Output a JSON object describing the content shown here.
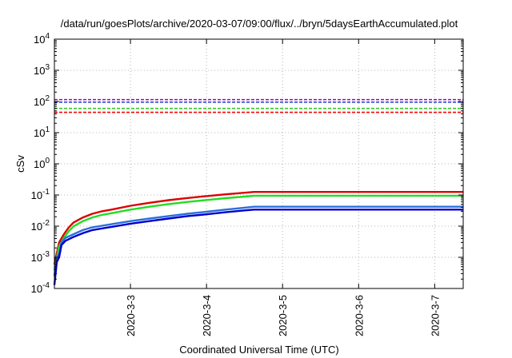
{
  "chart_data": {
    "type": "line",
    "title": "/data/run/goesPlots/archive/2020-03-07/09:00/flux/../bryn/5daysEarthAccumulated.plot",
    "xlabel": "Coordinated Universal Time (UTC)",
    "ylabel": "cSv",
    "xlim": [
      "2020-03-02",
      "2020-03-07 09:00"
    ],
    "ylim": [
      0.0001,
      10000
    ],
    "yscale": "log",
    "grid": true,
    "x_ticks": [
      {
        "date": "2020-03-03",
        "label": "2020-3-3"
      },
      {
        "date": "2020-03-04",
        "label": "2020-3-4"
      },
      {
        "date": "2020-03-05",
        "label": "2020-3-5"
      },
      {
        "date": "2020-03-06",
        "label": "2020-3-6"
      },
      {
        "date": "2020-03-07",
        "label": "2020-3-7"
      }
    ],
    "y_ticks": [
      {
        "value": 0.0001,
        "base": "10",
        "exp": "-4"
      },
      {
        "value": 0.001,
        "base": "10",
        "exp": "-3"
      },
      {
        "value": 0.01,
        "base": "10",
        "exp": "-2"
      },
      {
        "value": 0.1,
        "base": "10",
        "exp": "-1"
      },
      {
        "value": 1,
        "base": "10",
        "exp": "0"
      },
      {
        "value": 10,
        "base": "10",
        "exp": "1"
      },
      {
        "value": 100,
        "base": "10",
        "exp": "2"
      },
      {
        "value": 1000,
        "base": "10",
        "exp": "3"
      },
      {
        "value": 10000,
        "base": "10",
        "exp": "4"
      }
    ],
    "thresholds": [
      {
        "color": "#9400d3",
        "y": 115
      },
      {
        "color": "#1a3fd0",
        "y": 95
      },
      {
        "color": "#2ecc2e",
        "y": 60
      },
      {
        "color": "#ff0000",
        "y": 45
      }
    ],
    "series": [
      {
        "color": "#dd0000",
        "points": [
          [
            "2020-03-02 00:00",
            0.0006
          ],
          [
            "2020-03-02 01:30",
            0.003
          ],
          [
            "2020-03-02 03:00",
            0.0055
          ],
          [
            "2020-03-02 04:30",
            0.009
          ],
          [
            "2020-03-02 06:00",
            0.013
          ],
          [
            "2020-03-02 09:00",
            0.019
          ],
          [
            "2020-03-02 12:00",
            0.025
          ],
          [
            "2020-03-02 15:00",
            0.03
          ],
          [
            "2020-03-02 18:00",
            0.034
          ],
          [
            "2020-03-03 00:00",
            0.045
          ],
          [
            "2020-03-03 06:00",
            0.056
          ],
          [
            "2020-03-03 12:00",
            0.068
          ],
          [
            "2020-03-03 18:00",
            0.08
          ],
          [
            "2020-03-04 00:00",
            0.092
          ],
          [
            "2020-03-04 06:00",
            0.105
          ],
          [
            "2020-03-04 12:00",
            0.118
          ],
          [
            "2020-03-04 15:00",
            0.125
          ],
          [
            "2020-03-07 09:00",
            0.125
          ]
        ]
      },
      {
        "color": "#22dd22",
        "points": [
          [
            "2020-03-02 00:00",
            0.0004
          ],
          [
            "2020-03-02 01:30",
            0.0023
          ],
          [
            "2020-03-02 03:00",
            0.0042
          ],
          [
            "2020-03-02 04:30",
            0.0068
          ],
          [
            "2020-03-02 06:00",
            0.0098
          ],
          [
            "2020-03-02 09:00",
            0.0145
          ],
          [
            "2020-03-02 12:00",
            0.019
          ],
          [
            "2020-03-02 15:00",
            0.023
          ],
          [
            "2020-03-02 18:00",
            0.026
          ],
          [
            "2020-03-03 00:00",
            0.034
          ],
          [
            "2020-03-03 06:00",
            0.042
          ],
          [
            "2020-03-03 12:00",
            0.051
          ],
          [
            "2020-03-03 18:00",
            0.06
          ],
          [
            "2020-03-04 00:00",
            0.069
          ],
          [
            "2020-03-04 06:00",
            0.079
          ],
          [
            "2020-03-04 12:00",
            0.089
          ],
          [
            "2020-03-04 15:00",
            0.095
          ],
          [
            "2020-03-07 09:00",
            0.095
          ]
        ]
      },
      {
        "color": "#2a6fdc",
        "points": [
          [
            "2020-03-02 00:00",
            0.00025
          ],
          [
            "2020-03-02 00:45",
            0.001
          ],
          [
            "2020-03-02 01:30",
            0.0013
          ],
          [
            "2020-03-02 02:15",
            0.003
          ],
          [
            "2020-03-02 03:30",
            0.0042
          ],
          [
            "2020-03-02 06:00",
            0.0055
          ],
          [
            "2020-03-02 09:00",
            0.0075
          ],
          [
            "2020-03-02 12:00",
            0.0092
          ],
          [
            "2020-03-02 18:00",
            0.0115
          ],
          [
            "2020-03-03 00:00",
            0.0145
          ],
          [
            "2020-03-03 06:00",
            0.0175
          ],
          [
            "2020-03-03 12:00",
            0.021
          ],
          [
            "2020-03-03 18:00",
            0.025
          ],
          [
            "2020-03-04 00:00",
            0.029
          ],
          [
            "2020-03-04 06:00",
            0.034
          ],
          [
            "2020-03-04 12:00",
            0.039
          ],
          [
            "2020-03-04 15:00",
            0.042
          ],
          [
            "2020-03-07 09:00",
            0.042
          ]
        ]
      },
      {
        "color": "#0000cc",
        "points": [
          [
            "2020-03-02 00:00",
            0.00013
          ],
          [
            "2020-03-02 00:45",
            0.0007
          ],
          [
            "2020-03-02 01:30",
            0.001
          ],
          [
            "2020-03-02 02:15",
            0.0025
          ],
          [
            "2020-03-02 03:30",
            0.0034
          ],
          [
            "2020-03-02 06:00",
            0.0045
          ],
          [
            "2020-03-02 09:00",
            0.006
          ],
          [
            "2020-03-02 12:00",
            0.0075
          ],
          [
            "2020-03-02 18:00",
            0.0095
          ],
          [
            "2020-03-03 00:00",
            0.012
          ],
          [
            "2020-03-03 06:00",
            0.0145
          ],
          [
            "2020-03-03 12:00",
            0.0175
          ],
          [
            "2020-03-03 18:00",
            0.021
          ],
          [
            "2020-03-04 00:00",
            0.024
          ],
          [
            "2020-03-04 06:00",
            0.028
          ],
          [
            "2020-03-04 12:00",
            0.032
          ],
          [
            "2020-03-04 15:00",
            0.034
          ],
          [
            "2020-03-07 09:00",
            0.034
          ]
        ]
      }
    ]
  }
}
